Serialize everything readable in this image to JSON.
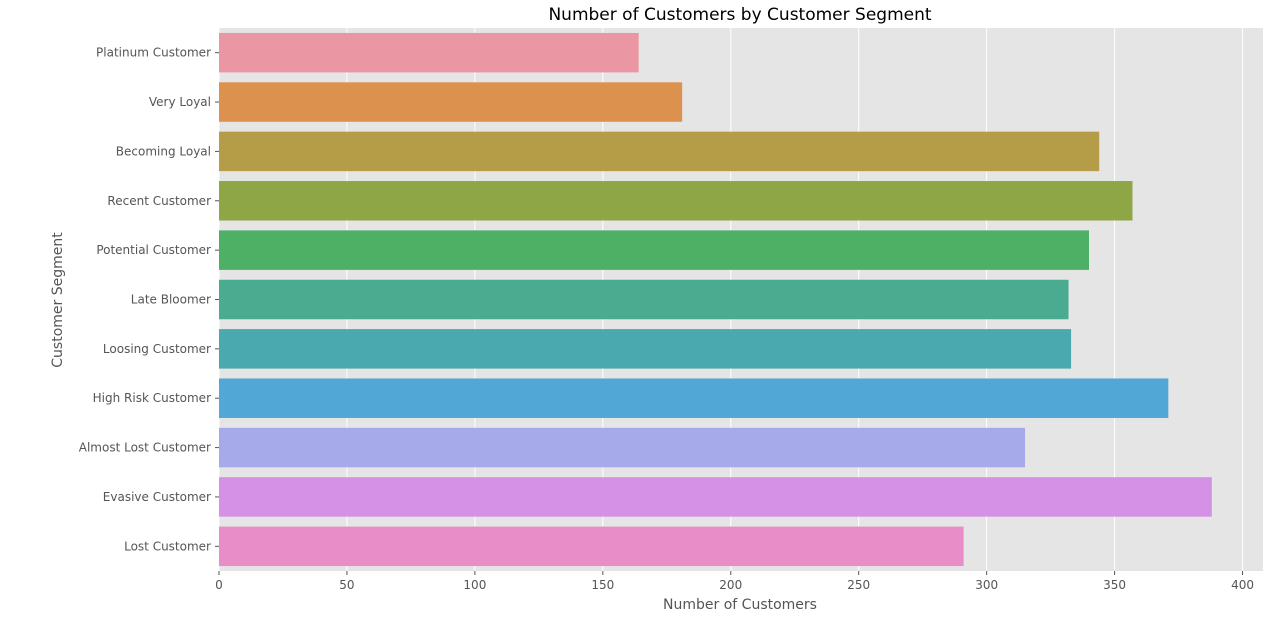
{
  "chart_data": {
    "type": "bar",
    "orientation": "horizontal",
    "title": "Number of Customers by Customer Segment",
    "xlabel": "Number of Customers",
    "ylabel": "Customer Segment",
    "xlim": [
      0,
      408
    ],
    "xticks": [
      0,
      50,
      100,
      150,
      200,
      250,
      300,
      350,
      400
    ],
    "grid": true,
    "categories": [
      "Platinum Customer",
      "Very Loyal",
      "Becoming Loyal",
      "Recent Customer",
      "Potential Customer",
      "Late Bloomer",
      "Loosing Customer",
      "High Risk Customer",
      "Almost Lost Customer",
      "Evasive Customer",
      "Lost Customer"
    ],
    "values": [
      164,
      181,
      344,
      357,
      340,
      332,
      333,
      371,
      315,
      388,
      291
    ],
    "colors": [
      "#ea96a3",
      "#dd914f",
      "#b59d48",
      "#8ea646",
      "#4db065",
      "#4aab91",
      "#4aa9ae",
      "#51a8d6",
      "#a7aaea",
      "#d591e5",
      "#e98dc9"
    ],
    "background": "#e5e5e5",
    "grid_color": "#ffffff"
  }
}
